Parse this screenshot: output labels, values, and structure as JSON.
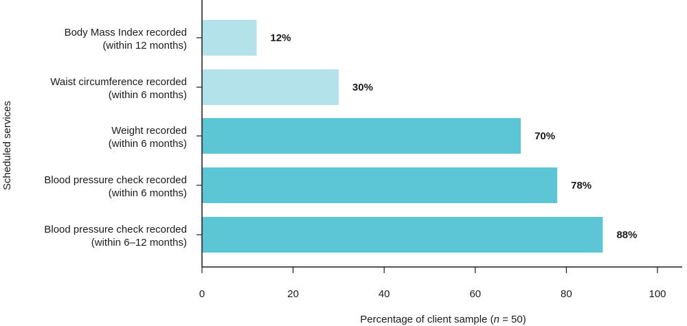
{
  "chart_data": {
    "type": "bar",
    "orientation": "horizontal",
    "categories": [
      [
        "Body Mass Index recorded",
        "(within 12 months)"
      ],
      [
        "Waist circumference recorded",
        "(within 6 months)"
      ],
      [
        "Weight recorded",
        "(within 6 months)"
      ],
      [
        "Blood pressure check recorded",
        "(within 6 months)"
      ],
      [
        "Blood pressure check recorded",
        "(within 6–12 months)"
      ]
    ],
    "values": [
      12,
      30,
      70,
      78,
      88
    ],
    "data_labels": [
      "12%",
      "30%",
      "70%",
      "78%",
      "88%"
    ],
    "bar_colors": [
      "#b3e2ea",
      "#b3e2ea",
      "#5cc6d6",
      "#5cc6d6",
      "#5cc6d6"
    ],
    "xlabel_parts": [
      "Percentage of client sample (",
      "n",
      " = 50)"
    ],
    "ylabel": "Scheduled services",
    "xlim": [
      0,
      100
    ],
    "xticks": [
      0,
      20,
      40,
      60,
      80,
      100
    ],
    "grid": false,
    "axis_color": "#1a1a1a"
  }
}
